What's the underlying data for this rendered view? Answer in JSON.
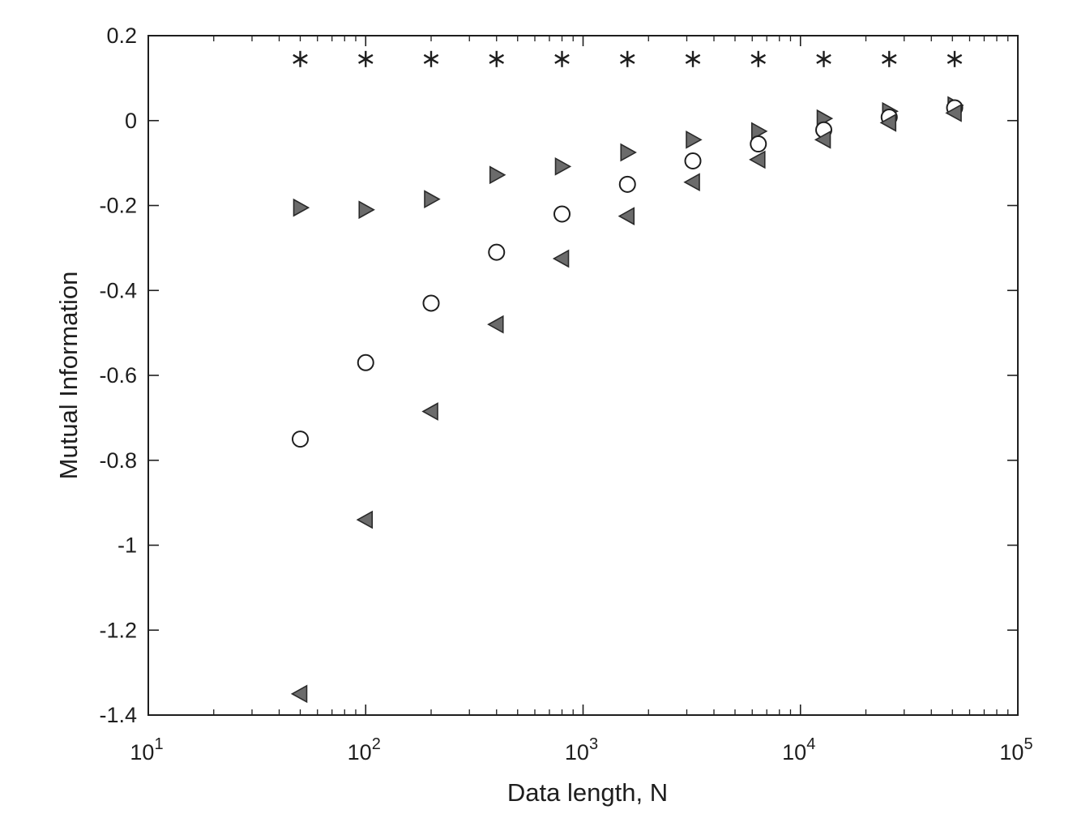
{
  "chart_data": {
    "type": "scatter",
    "title": "",
    "xlabel": "Data length, N",
    "ylabel": "Mutual Information",
    "x_scale": "log",
    "xlim": [
      10,
      100000
    ],
    "ylim": [
      -1.4,
      0.2
    ],
    "x_tick_values": [
      10,
      100,
      1000,
      10000,
      100000
    ],
    "x_tick_exponents": [
      "1",
      "2",
      "3",
      "4",
      "5"
    ],
    "y_tick_values": [
      0.2,
      0,
      -0.2,
      -0.4,
      -0.6,
      -0.8,
      -1,
      -1.2,
      -1.4
    ],
    "y_tick_labels": [
      "0.2",
      "0",
      "-0.2",
      "-0.4",
      "-0.6",
      "-0.8",
      "-1",
      "-1.2",
      "-1.4"
    ],
    "grid": false,
    "legend": "none",
    "x": [
      50,
      100,
      200,
      400,
      800,
      1600,
      3200,
      6400,
      12800,
      25600,
      51200
    ],
    "series": [
      {
        "marker": "asterisk",
        "color": "#1e1e1e",
        "values": [
          0.145,
          0.145,
          0.145,
          0.145,
          0.145,
          0.145,
          0.145,
          0.145,
          0.145,
          0.145,
          0.145
        ]
      },
      {
        "marker": "triangle-right",
        "color": "#6b6b6b",
        "values": [
          -0.205,
          -0.21,
          -0.185,
          -0.128,
          -0.108,
          -0.075,
          -0.045,
          -0.025,
          0.005,
          0.022,
          0.036
        ]
      },
      {
        "marker": "circle",
        "color": "#1e1e1e",
        "values": [
          -0.75,
          -0.57,
          -0.43,
          -0.31,
          -0.22,
          -0.15,
          -0.095,
          -0.055,
          -0.022,
          0.008,
          0.03
        ]
      },
      {
        "marker": "triangle-left",
        "color": "#6b6b6b",
        "values": [
          -1.35,
          -0.94,
          -0.685,
          -0.48,
          -0.325,
          -0.225,
          -0.145,
          -0.092,
          -0.045,
          -0.005,
          0.018
        ]
      }
    ]
  }
}
